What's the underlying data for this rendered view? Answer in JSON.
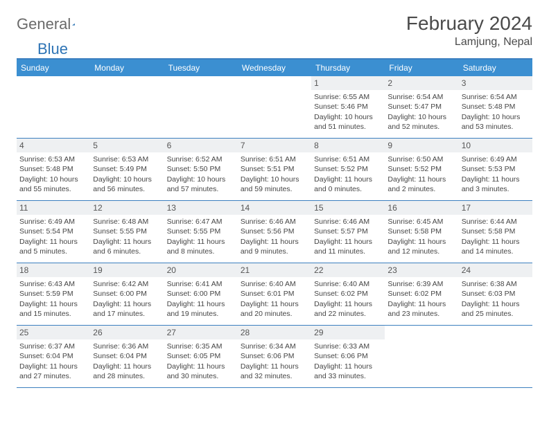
{
  "brand": {
    "name1": "General",
    "name2": "Blue"
  },
  "title": "February 2024",
  "location": "Lamjung, Nepal",
  "weekday_header_bg": "#3b8fd1",
  "border_color": "#3b7fbf",
  "weekdays": [
    "Sunday",
    "Monday",
    "Tuesday",
    "Wednesday",
    "Thursday",
    "Friday",
    "Saturday"
  ],
  "leading_blanks": 4,
  "days": [
    {
      "n": "1",
      "sunrise": "Sunrise: 6:55 AM",
      "sunset": "Sunset: 5:46 PM",
      "day1": "Daylight: 10 hours",
      "day2": "and 51 minutes."
    },
    {
      "n": "2",
      "sunrise": "Sunrise: 6:54 AM",
      "sunset": "Sunset: 5:47 PM",
      "day1": "Daylight: 10 hours",
      "day2": "and 52 minutes."
    },
    {
      "n": "3",
      "sunrise": "Sunrise: 6:54 AM",
      "sunset": "Sunset: 5:48 PM",
      "day1": "Daylight: 10 hours",
      "day2": "and 53 minutes."
    },
    {
      "n": "4",
      "sunrise": "Sunrise: 6:53 AM",
      "sunset": "Sunset: 5:48 PM",
      "day1": "Daylight: 10 hours",
      "day2": "and 55 minutes."
    },
    {
      "n": "5",
      "sunrise": "Sunrise: 6:53 AM",
      "sunset": "Sunset: 5:49 PM",
      "day1": "Daylight: 10 hours",
      "day2": "and 56 minutes."
    },
    {
      "n": "6",
      "sunrise": "Sunrise: 6:52 AM",
      "sunset": "Sunset: 5:50 PM",
      "day1": "Daylight: 10 hours",
      "day2": "and 57 minutes."
    },
    {
      "n": "7",
      "sunrise": "Sunrise: 6:51 AM",
      "sunset": "Sunset: 5:51 PM",
      "day1": "Daylight: 10 hours",
      "day2": "and 59 minutes."
    },
    {
      "n": "8",
      "sunrise": "Sunrise: 6:51 AM",
      "sunset": "Sunset: 5:52 PM",
      "day1": "Daylight: 11 hours",
      "day2": "and 0 minutes."
    },
    {
      "n": "9",
      "sunrise": "Sunrise: 6:50 AM",
      "sunset": "Sunset: 5:52 PM",
      "day1": "Daylight: 11 hours",
      "day2": "and 2 minutes."
    },
    {
      "n": "10",
      "sunrise": "Sunrise: 6:49 AM",
      "sunset": "Sunset: 5:53 PM",
      "day1": "Daylight: 11 hours",
      "day2": "and 3 minutes."
    },
    {
      "n": "11",
      "sunrise": "Sunrise: 6:49 AM",
      "sunset": "Sunset: 5:54 PM",
      "day1": "Daylight: 11 hours",
      "day2": "and 5 minutes."
    },
    {
      "n": "12",
      "sunrise": "Sunrise: 6:48 AM",
      "sunset": "Sunset: 5:55 PM",
      "day1": "Daylight: 11 hours",
      "day2": "and 6 minutes."
    },
    {
      "n": "13",
      "sunrise": "Sunrise: 6:47 AM",
      "sunset": "Sunset: 5:55 PM",
      "day1": "Daylight: 11 hours",
      "day2": "and 8 minutes."
    },
    {
      "n": "14",
      "sunrise": "Sunrise: 6:46 AM",
      "sunset": "Sunset: 5:56 PM",
      "day1": "Daylight: 11 hours",
      "day2": "and 9 minutes."
    },
    {
      "n": "15",
      "sunrise": "Sunrise: 6:46 AM",
      "sunset": "Sunset: 5:57 PM",
      "day1": "Daylight: 11 hours",
      "day2": "and 11 minutes."
    },
    {
      "n": "16",
      "sunrise": "Sunrise: 6:45 AM",
      "sunset": "Sunset: 5:58 PM",
      "day1": "Daylight: 11 hours",
      "day2": "and 12 minutes."
    },
    {
      "n": "17",
      "sunrise": "Sunrise: 6:44 AM",
      "sunset": "Sunset: 5:58 PM",
      "day1": "Daylight: 11 hours",
      "day2": "and 14 minutes."
    },
    {
      "n": "18",
      "sunrise": "Sunrise: 6:43 AM",
      "sunset": "Sunset: 5:59 PM",
      "day1": "Daylight: 11 hours",
      "day2": "and 15 minutes."
    },
    {
      "n": "19",
      "sunrise": "Sunrise: 6:42 AM",
      "sunset": "Sunset: 6:00 PM",
      "day1": "Daylight: 11 hours",
      "day2": "and 17 minutes."
    },
    {
      "n": "20",
      "sunrise": "Sunrise: 6:41 AM",
      "sunset": "Sunset: 6:00 PM",
      "day1": "Daylight: 11 hours",
      "day2": "and 19 minutes."
    },
    {
      "n": "21",
      "sunrise": "Sunrise: 6:40 AM",
      "sunset": "Sunset: 6:01 PM",
      "day1": "Daylight: 11 hours",
      "day2": "and 20 minutes."
    },
    {
      "n": "22",
      "sunrise": "Sunrise: 6:40 AM",
      "sunset": "Sunset: 6:02 PM",
      "day1": "Daylight: 11 hours",
      "day2": "and 22 minutes."
    },
    {
      "n": "23",
      "sunrise": "Sunrise: 6:39 AM",
      "sunset": "Sunset: 6:02 PM",
      "day1": "Daylight: 11 hours",
      "day2": "and 23 minutes."
    },
    {
      "n": "24",
      "sunrise": "Sunrise: 6:38 AM",
      "sunset": "Sunset: 6:03 PM",
      "day1": "Daylight: 11 hours",
      "day2": "and 25 minutes."
    },
    {
      "n": "25",
      "sunrise": "Sunrise: 6:37 AM",
      "sunset": "Sunset: 6:04 PM",
      "day1": "Daylight: 11 hours",
      "day2": "and 27 minutes."
    },
    {
      "n": "26",
      "sunrise": "Sunrise: 6:36 AM",
      "sunset": "Sunset: 6:04 PM",
      "day1": "Daylight: 11 hours",
      "day2": "and 28 minutes."
    },
    {
      "n": "27",
      "sunrise": "Sunrise: 6:35 AM",
      "sunset": "Sunset: 6:05 PM",
      "day1": "Daylight: 11 hours",
      "day2": "and 30 minutes."
    },
    {
      "n": "28",
      "sunrise": "Sunrise: 6:34 AM",
      "sunset": "Sunset: 6:06 PM",
      "day1": "Daylight: 11 hours",
      "day2": "and 32 minutes."
    },
    {
      "n": "29",
      "sunrise": "Sunrise: 6:33 AM",
      "sunset": "Sunset: 6:06 PM",
      "day1": "Daylight: 11 hours",
      "day2": "and 33 minutes."
    }
  ]
}
